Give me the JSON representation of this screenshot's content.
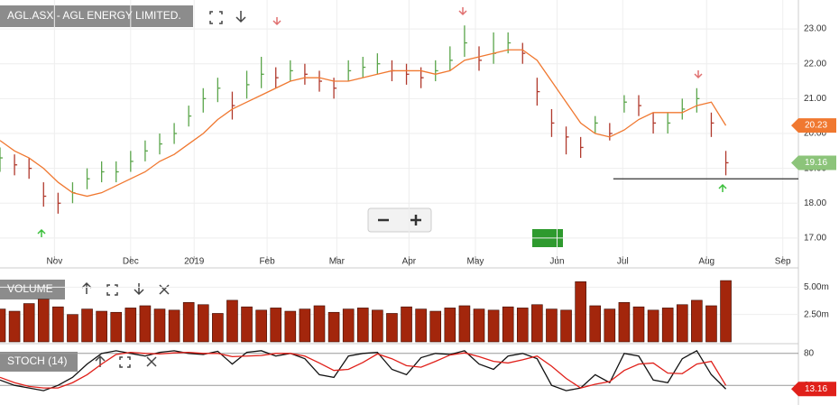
{
  "chart_data": [
    {
      "type": "ohlc",
      "title": "AGL.ASX - AGL ENERGY LIMITED.",
      "x": [
        0,
        4,
        8,
        12,
        16,
        20,
        24,
        28,
        32,
        36,
        40,
        44,
        48,
        52,
        56,
        60,
        64,
        68,
        72,
        76,
        80,
        84,
        88,
        92,
        96,
        100,
        104,
        108,
        112,
        116,
        120,
        124,
        128,
        132,
        136,
        140,
        144,
        148,
        152,
        156,
        160,
        164,
        168,
        172,
        176,
        180,
        184,
        188,
        192,
        196,
        200
      ],
      "high": [
        19.6,
        19.4,
        19.3,
        18.6,
        18.3,
        18.6,
        19.0,
        19.2,
        19.2,
        19.5,
        19.8,
        20.0,
        20.3,
        20.8,
        21.3,
        21.6,
        21.2,
        21.8,
        22.2,
        21.9,
        22.1,
        22.0,
        21.8,
        21.6,
        22.1,
        22.2,
        22.3,
        22.1,
        22.0,
        21.9,
        22.1,
        22.5,
        23.1,
        22.5,
        22.9,
        22.9,
        22.6,
        21.6,
        20.7,
        20.2,
        19.9,
        20.5,
        20.3,
        21.1,
        21.1,
        20.6,
        20.6,
        21.0,
        21.3,
        20.6,
        19.5
      ],
      "low": [
        18.9,
        18.8,
        18.7,
        17.9,
        17.7,
        18.0,
        18.4,
        18.6,
        18.6,
        18.9,
        19.2,
        19.4,
        19.7,
        20.2,
        20.6,
        20.9,
        20.4,
        21.0,
        21.3,
        21.3,
        21.5,
        21.4,
        21.2,
        21.0,
        21.5,
        21.6,
        21.7,
        21.5,
        21.4,
        21.3,
        21.5,
        21.8,
        22.2,
        21.8,
        22.0,
        22.3,
        22.0,
        20.8,
        19.9,
        19.4,
        19.3,
        20.0,
        19.8,
        20.6,
        20.5,
        20.0,
        20.0,
        20.4,
        20.6,
        19.9,
        18.8
      ],
      "close": [
        19.3,
        19.1,
        19.0,
        18.2,
        18.0,
        18.3,
        18.7,
        18.9,
        18.9,
        19.2,
        19.5,
        19.7,
        20.0,
        20.5,
        21.0,
        21.3,
        20.8,
        21.4,
        21.7,
        21.6,
        21.8,
        21.7,
        21.5,
        21.3,
        21.8,
        21.9,
        22.0,
        21.8,
        21.7,
        21.6,
        21.8,
        22.1,
        22.6,
        22.1,
        22.3,
        22.6,
        22.3,
        21.2,
        20.3,
        19.9,
        19.6,
        20.3,
        20.0,
        20.9,
        20.8,
        20.3,
        20.3,
        20.7,
        21.0,
        20.3,
        19.16
      ],
      "ma": [
        19.8,
        19.5,
        19.3,
        19.0,
        18.6,
        18.3,
        18.2,
        18.3,
        18.5,
        18.7,
        18.9,
        19.2,
        19.4,
        19.7,
        20.0,
        20.4,
        20.7,
        20.9,
        21.1,
        21.3,
        21.5,
        21.6,
        21.6,
        21.5,
        21.5,
        21.6,
        21.7,
        21.8,
        21.8,
        21.8,
        21.7,
        21.8,
        22.1,
        22.2,
        22.3,
        22.4,
        22.4,
        22.1,
        21.5,
        20.9,
        20.3,
        20.0,
        19.9,
        20.1,
        20.4,
        20.6,
        20.6,
        20.6,
        20.8,
        20.9,
        20.23
      ],
      "up_color": "#5aa54a",
      "down_color": "#b0392c",
      "ma_color": "#f07830",
      "last_color": "#8cc47a",
      "hline": 18.7,
      "hline_x": [
        169,
        220
      ],
      "xlim": [
        0,
        220
      ],
      "ylim": [
        16.48,
        23.83
      ],
      "xticks": [
        {
          "value": 15,
          "label": "Nov"
        },
        {
          "value": 36,
          "label": "Dec"
        },
        {
          "value": 53.5,
          "label": "2019"
        },
        {
          "value": 73.6,
          "label": "Feb"
        },
        {
          "value": 92.8,
          "label": "Mar"
        },
        {
          "value": 112.7,
          "label": "Apr"
        },
        {
          "value": 131,
          "label": "May"
        },
        {
          "value": 153.5,
          "label": "Jun"
        },
        {
          "value": 171.6,
          "label": "Jul"
        },
        {
          "value": 194.7,
          "label": "Aug"
        },
        {
          "value": 215.7,
          "label": "Sep"
        }
      ],
      "yticks": [
        {
          "value": 17,
          "label": "17.00"
        },
        {
          "value": 18,
          "label": "18.00"
        },
        {
          "value": 19,
          "label": "19.00"
        },
        {
          "value": 20,
          "label": "20.00"
        },
        {
          "value": 21,
          "label": "21.00"
        },
        {
          "value": 22,
          "label": "22.00"
        },
        {
          "value": 23,
          "label": "23.00"
        }
      ],
      "grid": true
    },
    {
      "type": "bar",
      "title": "VOLUME",
      "x": [
        0,
        4,
        8,
        12,
        16,
        20,
        24,
        28,
        32,
        36,
        40,
        44,
        48,
        52,
        56,
        60,
        64,
        68,
        72,
        76,
        80,
        84,
        88,
        92,
        96,
        100,
        104,
        108,
        112,
        116,
        120,
        124,
        128,
        132,
        136,
        140,
        144,
        148,
        152,
        156,
        160,
        164,
        168,
        172,
        176,
        180,
        184,
        188,
        192,
        196,
        200
      ],
      "values": [
        3.0,
        2.8,
        3.5,
        3.9,
        3.2,
        2.5,
        3.0,
        2.8,
        2.7,
        3.1,
        3.3,
        3.0,
        2.9,
        3.6,
        3.4,
        2.6,
        3.8,
        3.2,
        2.9,
        3.1,
        2.8,
        3.0,
        3.3,
        2.7,
        3.0,
        3.1,
        2.9,
        2.6,
        3.2,
        3.0,
        2.8,
        3.1,
        3.3,
        3.0,
        2.9,
        3.2,
        3.1,
        3.4,
        3.0,
        2.9,
        5.5,
        3.3,
        3.0,
        3.6,
        3.2,
        2.9,
        3.1,
        3.4,
        3.8,
        3.3,
        5.6
      ],
      "color": "#a3260c",
      "xlim": [
        0,
        220
      ],
      "ylim": [
        0,
        6.1
      ],
      "yticks": [
        {
          "value": 2.5,
          "label": "2.50m"
        },
        {
          "value": 5,
          "label": "5.00m"
        }
      ],
      "grid": true
    },
    {
      "type": "line",
      "title": "STOCH (14)",
      "x": [
        0,
        4,
        8,
        12,
        16,
        20,
        24,
        28,
        32,
        36,
        40,
        44,
        48,
        52,
        56,
        60,
        64,
        68,
        72,
        76,
        80,
        84,
        88,
        92,
        96,
        100,
        104,
        108,
        112,
        116,
        120,
        124,
        128,
        132,
        136,
        140,
        144,
        148,
        152,
        156,
        160,
        164,
        168,
        172,
        176,
        180,
        184,
        188,
        192,
        196,
        200
      ],
      "series": [
        {
          "color": "#111111",
          "values": [
            30,
            20,
            15,
            10,
            20,
            35,
            60,
            80,
            85,
            80,
            75,
            82,
            85,
            80,
            78,
            84,
            60,
            82,
            85,
            75,
            80,
            70,
            40,
            35,
            75,
            80,
            82,
            50,
            40,
            72,
            80,
            78,
            85,
            60,
            50,
            75,
            80,
            70,
            20,
            10,
            15,
            40,
            25,
            80,
            75,
            30,
            25,
            70,
            85,
            40,
            13.16
          ]
        },
        {
          "color": "#e0201a",
          "values": [
            35,
            25,
            18,
            15,
            15,
            25,
            40,
            60,
            78,
            82,
            80,
            79,
            81,
            82,
            80,
            80,
            74,
            75,
            76,
            80,
            80,
            75,
            62,
            48,
            50,
            63,
            79,
            70,
            57,
            54,
            65,
            77,
            81,
            74,
            65,
            62,
            68,
            75,
            56,
            33,
            15,
            22,
            27,
            48,
            60,
            62,
            43,
            42,
            60,
            65,
            20
          ]
        }
      ],
      "xlim": [
        0,
        220
      ],
      "ylim": [
        0,
        100
      ],
      "yticks": [
        20,
        80
      ],
      "grid": true
    }
  ]
}
